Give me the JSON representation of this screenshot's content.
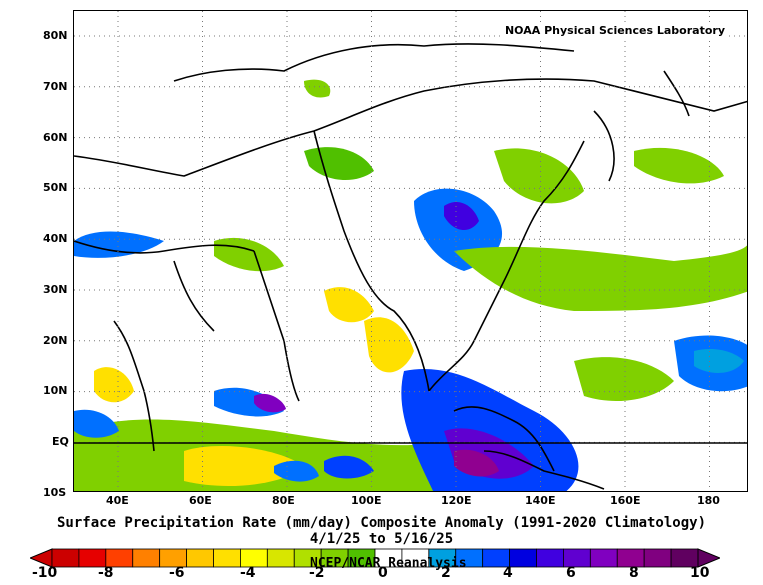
{
  "credit": "NOAA Physical Sciences Laboratory",
  "title": "Surface Precipitation Rate (mm/day) Composite Anomaly (1991-2020 Climatology)",
  "date_range": "4/1/25  to 5/16/25",
  "reanalysis": "NCEP/NCAR Reanalysis",
  "lat_labels": [
    "80N",
    "70N",
    "60N",
    "50N",
    "40N",
    "30N",
    "20N",
    "10N",
    "EQ",
    "10S"
  ],
  "lon_labels": [
    "40E",
    "60E",
    "80E",
    "100E",
    "120E",
    "140E",
    "160E",
    "180"
  ],
  "colorbar": {
    "ticks": [
      "-10",
      "-8",
      "-6",
      "-4",
      "-2",
      "0",
      "2",
      "4",
      "6",
      "8",
      "10"
    ],
    "colors": [
      "#cc0000",
      "#e60000",
      "#ff4000",
      "#ff8000",
      "#ffa000",
      "#ffc800",
      "#ffe000",
      "#ffff00",
      "#d8e600",
      "#b0e000",
      "#80d000",
      "#50c000",
      "#ffffff",
      "#ffffff",
      "#00a0e0",
      "#0070ff",
      "#0040ff",
      "#0000e0",
      "#4000e0",
      "#6000d0",
      "#8000c0",
      "#900090",
      "#800080",
      "#600060"
    ]
  }
}
